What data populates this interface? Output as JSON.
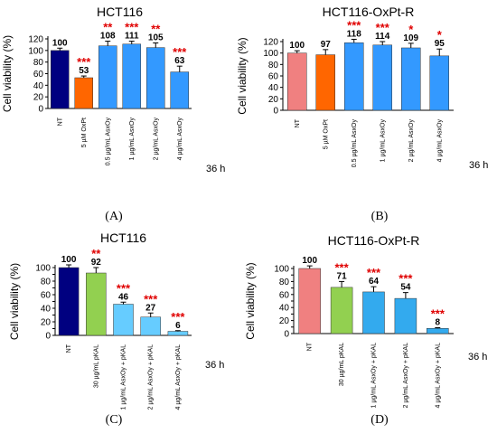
{
  "time_label": "36 h",
  "chart_data": [
    {
      "type": "bar",
      "panel_label": "(A)",
      "title": "HCT116",
      "ylabel": "Cell viability (%)",
      "ylim": [
        0,
        120
      ],
      "yticks": [
        0,
        20,
        40,
        60,
        80,
        100,
        120
      ],
      "categories": [
        "NT",
        "5 µM OxPt",
        "0.5 µg/mL AsxOy",
        "1 µg/mL AsxOy",
        "2 µg/mL AsxOy",
        "4 µg/mL AsxOy"
      ],
      "values": [
        100,
        53,
        108,
        111,
        105,
        63
      ],
      "errors": [
        4,
        3,
        8,
        5,
        8,
        10
      ],
      "significance": [
        "",
        "***",
        "**",
        "***",
        "**",
        "***"
      ],
      "colors": [
        "#000080",
        "#ff6600",
        "#3399ff",
        "#3399ff",
        "#3399ff",
        "#3399ff"
      ]
    },
    {
      "type": "bar",
      "panel_label": "(B)",
      "title": "HCT116-OxPt-R",
      "ylabel": "Cell viability (%)",
      "ylim": [
        0,
        120
      ],
      "yticks": [
        0,
        20,
        40,
        60,
        80,
        100,
        120
      ],
      "categories": [
        "NT",
        "5 µM OxPt",
        "0.5 µg/mL AsxOy",
        "1 µg/mL AsxOy",
        "2 µg/mL AsxOy",
        "4 µg/mL AsxOy"
      ],
      "values": [
        100,
        97,
        118,
        114,
        109,
        95
      ],
      "errors": [
        4,
        9,
        6,
        6,
        8,
        12
      ],
      "significance": [
        "",
        "",
        "***",
        "***",
        "*",
        "*"
      ],
      "colors": [
        "#f08080",
        "#ff6600",
        "#3399ff",
        "#3399ff",
        "#3399ff",
        "#3399ff"
      ]
    },
    {
      "type": "bar",
      "panel_label": "(C)",
      "title": "HCT116",
      "ylabel": "Cell viability (%)",
      "ylim": [
        0,
        100
      ],
      "yticks": [
        0,
        10,
        20,
        30,
        40,
        50,
        60,
        70,
        80,
        90,
        100
      ],
      "categories": [
        "NT",
        "30 µg/mL pKAL",
        "1 µg/mL AsxOy + pKAL",
        "2 µg/mL AsxOy + pKAL",
        "4 µg/mL AsxOy + pKAL"
      ],
      "values": [
        100,
        92,
        46,
        27,
        6
      ],
      "errors": [
        4,
        8,
        3,
        6,
        1
      ],
      "significance": [
        "",
        "**",
        "***",
        "***",
        "***"
      ],
      "colors": [
        "#000080",
        "#92d050",
        "#66ccff",
        "#66ccff",
        "#66ccff"
      ]
    },
    {
      "type": "bar",
      "panel_label": "(D)",
      "title": "HCT116-OxPt-R",
      "ylabel": "Cell viability (%)",
      "ylim": [
        0,
        100
      ],
      "yticks": [
        0,
        10,
        20,
        30,
        40,
        50,
        60,
        70,
        80,
        90,
        100
      ],
      "categories": [
        "NT",
        "30 µg/mL pKAL",
        "1 µg/mL AsxOy + pKAL",
        "2 µg/mL AsxOy + pKAL",
        "4 µg/mL AsxOy + pKAL"
      ],
      "values": [
        100,
        71,
        64,
        54,
        8
      ],
      "errors": [
        4,
        9,
        8,
        9,
        1
      ],
      "significance": [
        "",
        "***",
        "***",
        "***",
        "***"
      ],
      "colors": [
        "#f08080",
        "#92d050",
        "#33aaee",
        "#33aaee",
        "#33aaee"
      ]
    }
  ]
}
